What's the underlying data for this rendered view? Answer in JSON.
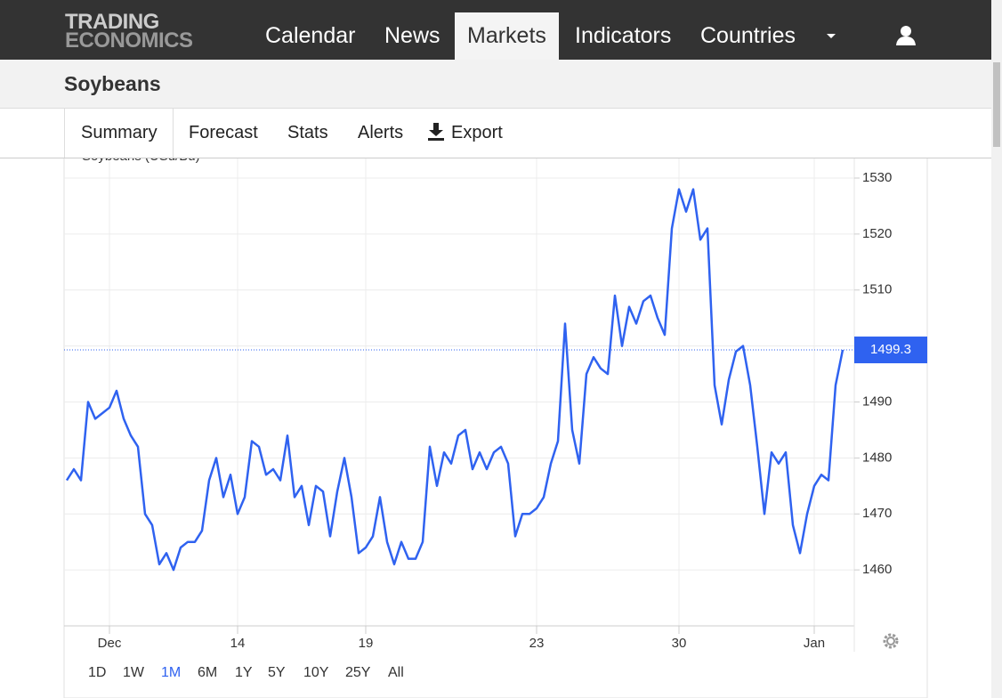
{
  "header": {
    "logo": [
      "TRADING",
      "ECONOMICS"
    ],
    "nav": [
      "Calendar",
      "News",
      "Markets",
      "Indicators",
      "Countries"
    ],
    "active_nav": "Markets"
  },
  "page_title": "Soybeans",
  "tabs": [
    "Summary",
    "Forecast",
    "Stats",
    "Alerts",
    "Export"
  ],
  "chart_data": {
    "type": "line",
    "categories": [
      null,
      null,
      null,
      null,
      null,
      null,
      "Dec",
      null,
      null,
      null,
      null,
      null,
      null,
      null,
      null,
      null,
      null,
      null,
      null,
      null,
      null,
      null,
      null,
      null,
      "14",
      null,
      null,
      null,
      null,
      null,
      null,
      null,
      null,
      null,
      null,
      null,
      null,
      null,
      null,
      null,
      null,
      null,
      "19",
      null,
      null,
      null,
      null,
      null,
      null,
      null,
      null,
      null,
      null,
      null,
      null,
      null,
      null,
      null,
      null,
      null,
      null,
      null,
      null,
      null,
      null,
      null,
      "23",
      null,
      null,
      null,
      null,
      null,
      null,
      null,
      null,
      null,
      null,
      null,
      null,
      null,
      null,
      null,
      null,
      null,
      null,
      null,
      "30",
      null,
      null,
      null,
      null,
      null,
      null,
      null,
      null,
      null,
      null,
      null,
      null,
      null,
      null,
      null,
      null,
      null,
      null,
      "Jan",
      null,
      null,
      null,
      null
    ],
    "series": [
      {
        "name": "Soybeans (USd/Bu)",
        "color": "#2f62f0",
        "values": [
          1476,
          1478,
          1476,
          1490,
          1487,
          1488,
          1489,
          1492,
          1487,
          1484,
          1482,
          1470,
          1468,
          1461,
          1463,
          1460,
          1464,
          1465,
          1465,
          1467,
          1476,
          1480,
          1473,
          1477,
          1470,
          1473,
          1483,
          1482,
          1477,
          1478,
          1476,
          1484,
          1473,
          1475,
          1468,
          1475,
          1474,
          1466,
          1474,
          1480,
          1473,
          1463,
          1464,
          1466,
          1473,
          1465,
          1461,
          1465,
          1462,
          1462,
          1465,
          1482,
          1475,
          1481,
          1479,
          1484,
          1485,
          1478,
          1481,
          1478,
          1481,
          1482,
          1479,
          1466,
          1470,
          1470,
          1471,
          1473,
          1479,
          1483,
          1504,
          1485,
          1479,
          1495,
          1498,
          1496,
          1495,
          1509,
          1500,
          1507,
          1504,
          1508,
          1509,
          1505,
          1502,
          1521,
          1528,
          1524,
          1528,
          1519,
          1521,
          1493,
          1486,
          1494,
          1499,
          1500,
          1493,
          1482,
          1470,
          1481,
          1479,
          1481,
          1468,
          1463,
          1470,
          1475,
          1477,
          1476,
          1493,
          1499.3
        ]
      }
    ],
    "ylim": [
      1450,
      1533.5
    ],
    "yticks": [
      1460,
      1470,
      1480,
      1490,
      1500,
      1510,
      1520,
      1530
    ],
    "grid": true
  },
  "range_buttons": [
    "1D",
    "1W",
    "1M",
    "6M",
    "1Y",
    "5Y",
    "10Y",
    "25Y",
    "All"
  ],
  "active_range": "1M"
}
